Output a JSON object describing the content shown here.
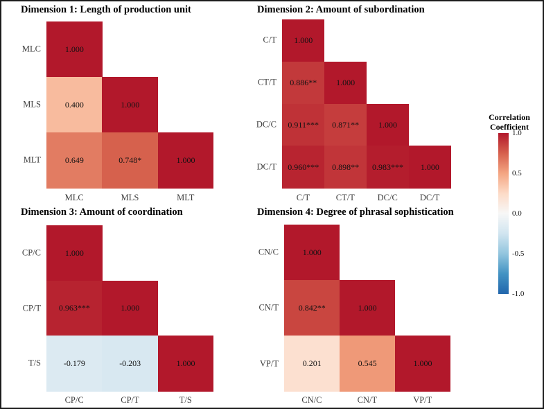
{
  "legend": {
    "title_lines": [
      "Correlation",
      "Coefficient"
    ],
    "ticks": [
      "1.0",
      "0.5",
      "0.0",
      "-0.5",
      "-1.0"
    ],
    "palette": [
      {
        "value": -1.0,
        "color": "#2166AC"
      },
      {
        "value": -0.75,
        "color": "#4393C3"
      },
      {
        "value": -0.5,
        "color": "#92C5DE"
      },
      {
        "value": -0.25,
        "color": "#D1E5F0"
      },
      {
        "value": 0.0,
        "color": "#F7F7F7"
      },
      {
        "value": 0.25,
        "color": "#FDDBC7"
      },
      {
        "value": 0.5,
        "color": "#F4A582"
      },
      {
        "value": 0.75,
        "color": "#D6604D"
      },
      {
        "value": 1.0,
        "color": "#B2182B"
      }
    ]
  },
  "chart_data": [
    {
      "type": "heatmap",
      "title": "Dimension 1: Length of production unit",
      "variables": [
        "MLC",
        "MLS",
        "MLT"
      ],
      "value_range": [
        -1,
        1
      ],
      "lower_triangle": [
        {
          "row": "MLC",
          "values": [
            {
              "v": 1.0,
              "label": "1.000"
            }
          ]
        },
        {
          "row": "MLS",
          "values": [
            {
              "v": 0.4,
              "label": "0.400"
            },
            {
              "v": 1.0,
              "label": "1.000"
            }
          ]
        },
        {
          "row": "MLT",
          "values": [
            {
              "v": 0.649,
              "label": "0.649"
            },
            {
              "v": 0.748,
              "label": "0.748*"
            },
            {
              "v": 1.0,
              "label": "1.000"
            }
          ]
        }
      ]
    },
    {
      "type": "heatmap",
      "title": "Dimension 2: Amount of subordination",
      "variables": [
        "C/T",
        "CT/T",
        "DC/C",
        "DC/T"
      ],
      "value_range": [
        -1,
        1
      ],
      "lower_triangle": [
        {
          "row": "C/T",
          "values": [
            {
              "v": 1.0,
              "label": "1.000"
            }
          ]
        },
        {
          "row": "CT/T",
          "values": [
            {
              "v": 0.886,
              "label": "0.886**"
            },
            {
              "v": 1.0,
              "label": "1.000"
            }
          ]
        },
        {
          "row": "DC/C",
          "values": [
            {
              "v": 0.911,
              "label": "0.911***"
            },
            {
              "v": 0.871,
              "label": "0.871**"
            },
            {
              "v": 1.0,
              "label": "1.000"
            }
          ]
        },
        {
          "row": "DC/T",
          "values": [
            {
              "v": 0.96,
              "label": "0.960***"
            },
            {
              "v": 0.898,
              "label": "0.898**"
            },
            {
              "v": 0.983,
              "label": "0.983***"
            },
            {
              "v": 1.0,
              "label": "1.000"
            }
          ]
        }
      ]
    },
    {
      "type": "heatmap",
      "title": "Dimension 3: Amount of coordination",
      "variables": [
        "CP/C",
        "CP/T",
        "T/S"
      ],
      "value_range": [
        -1,
        1
      ],
      "lower_triangle": [
        {
          "row": "CP/C",
          "values": [
            {
              "v": 1.0,
              "label": "1.000"
            }
          ]
        },
        {
          "row": "CP/T",
          "values": [
            {
              "v": 0.963,
              "label": "0.963***"
            },
            {
              "v": 1.0,
              "label": "1.000"
            }
          ]
        },
        {
          "row": "T/S",
          "values": [
            {
              "v": -0.179,
              "label": "-0.179"
            },
            {
              "v": -0.203,
              "label": "-0.203"
            },
            {
              "v": 1.0,
              "label": "1.000"
            }
          ]
        }
      ]
    },
    {
      "type": "heatmap",
      "title": "Dimension 4: Degree of phrasal sophistication",
      "variables": [
        "CN/C",
        "CN/T",
        "VP/T"
      ],
      "value_range": [
        -1,
        1
      ],
      "lower_triangle": [
        {
          "row": "CN/C",
          "values": [
            {
              "v": 1.0,
              "label": "1.000"
            }
          ]
        },
        {
          "row": "CN/T",
          "values": [
            {
              "v": 0.842,
              "label": "0.842**"
            },
            {
              "v": 1.0,
              "label": "1.000"
            }
          ]
        },
        {
          "row": "VP/T",
          "values": [
            {
              "v": 0.201,
              "label": "0.201"
            },
            {
              "v": 0.545,
              "label": "0.545"
            },
            {
              "v": 1.0,
              "label": "1.000"
            }
          ]
        }
      ]
    }
  ]
}
